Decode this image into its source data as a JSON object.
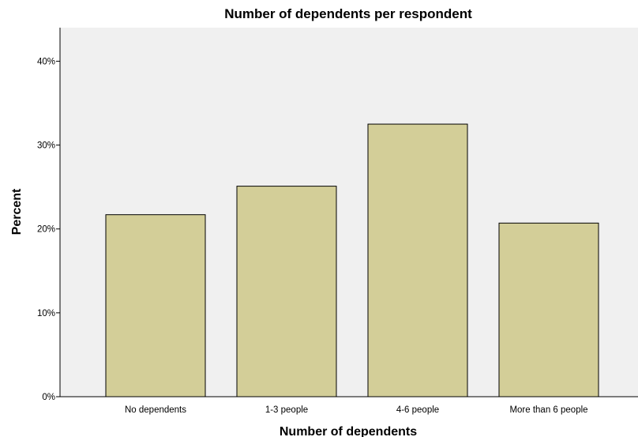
{
  "chart_data": {
    "type": "bar",
    "title": "Number of dependents per respondent",
    "xlabel": "Number of dependents",
    "ylabel": "Percent",
    "categories": [
      "No dependents",
      "1-3 people",
      "4-6 people",
      "More than 6 people"
    ],
    "values": [
      21.7,
      25.1,
      32.5,
      20.7
    ],
    "ylim": [
      0,
      44
    ],
    "yticks": [
      0,
      10,
      20,
      30,
      40
    ],
    "ytick_labels": [
      "0%",
      "10%",
      "20%",
      "30%",
      "40%"
    ],
    "grid": false,
    "legend": "none",
    "colors": {
      "bar_fill": "#d3ce98",
      "bar_stroke": "#000000",
      "plot_background": "#f0f0f0",
      "axis": "#000000"
    }
  }
}
